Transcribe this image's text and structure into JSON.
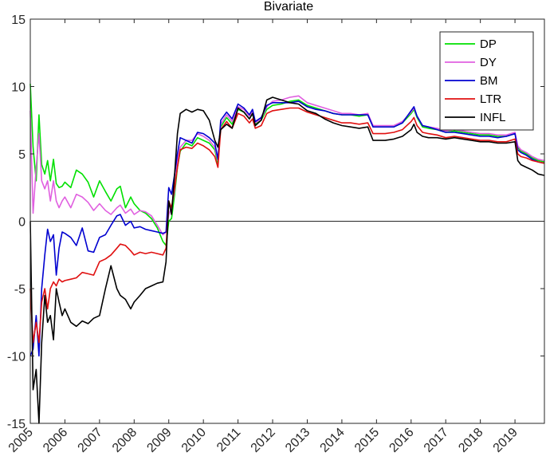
{
  "chart_data": {
    "type": "line",
    "title": "Bivariate",
    "xlabel": "",
    "ylabel": "",
    "xlim": [
      2005,
      2019.85
    ],
    "ylim": [
      -15,
      15
    ],
    "grid": false,
    "legend_position": "top-right",
    "x_ticks": [
      "2005",
      "2006",
      "2007",
      "2008",
      "2009",
      "2010",
      "2011",
      "2012",
      "2013",
      "2014",
      "2015",
      "2016",
      "2017",
      "2018",
      "2019"
    ],
    "y_ticks": [
      "-15",
      "-10",
      "-5",
      "0",
      "5",
      "10",
      "15"
    ],
    "zero_line": true,
    "series": [
      {
        "name": "DP",
        "color": "#00e000",
        "x": [
          2005.0,
          2005.08,
          2005.17,
          2005.25,
          2005.33,
          2005.42,
          2005.5,
          2005.58,
          2005.67,
          2005.75,
          2005.83,
          2005.92,
          2006.0,
          2006.17,
          2006.33,
          2006.5,
          2006.67,
          2006.83,
          2007.0,
          2007.17,
          2007.33,
          2007.5,
          2007.6,
          2007.75,
          2007.9,
          2008.0,
          2008.17,
          2008.33,
          2008.5,
          2008.67,
          2008.83,
          2008.92,
          2009.0,
          2009.08,
          2009.17,
          2009.25,
          2009.33,
          2009.5,
          2009.67,
          2009.83,
          2010.0,
          2010.17,
          2010.33,
          2010.42,
          2010.5,
          2010.67,
          2010.83,
          2011.0,
          2011.17,
          2011.33,
          2011.42,
          2011.5,
          2011.67,
          2011.83,
          2012.0,
          2012.25,
          2012.5,
          2012.75,
          2013.0,
          2013.25,
          2013.5,
          2013.75,
          2014.0,
          2014.25,
          2014.5,
          2014.75,
          2014.9,
          2015.0,
          2015.25,
          2015.5,
          2015.75,
          2016.0,
          2016.08,
          2016.17,
          2016.33,
          2016.5,
          2016.75,
          2017.0,
          2017.25,
          2017.5,
          2017.75,
          2018.0,
          2018.25,
          2018.5,
          2018.75,
          2019.0,
          2019.08,
          2019.17,
          2019.33,
          2019.5,
          2019.67,
          2019.85
        ],
        "y": [
          10.2,
          5.5,
          3.0,
          7.9,
          4.2,
          3.5,
          4.5,
          3.0,
          4.6,
          2.8,
          2.5,
          2.6,
          2.9,
          2.5,
          3.8,
          3.5,
          2.9,
          1.8,
          3.0,
          2.2,
          1.5,
          2.4,
          2.6,
          1.0,
          1.8,
          1.3,
          0.8,
          0.6,
          0.2,
          -0.5,
          -1.5,
          -1.8,
          0.0,
          0.2,
          2.0,
          4.0,
          5.2,
          5.8,
          5.6,
          6.2,
          6.0,
          5.8,
          5.3,
          4.3,
          7.0,
          7.7,
          7.2,
          8.3,
          8.1,
          7.6,
          8.0,
          7.2,
          7.5,
          8.3,
          8.6,
          8.7,
          8.9,
          9.0,
          8.6,
          8.4,
          8.2,
          8.0,
          7.9,
          7.9,
          7.8,
          7.9,
          7.0,
          7.0,
          7.0,
          7.0,
          7.3,
          8.0,
          8.3,
          7.7,
          7.0,
          6.9,
          6.8,
          6.6,
          6.7,
          6.6,
          6.5,
          6.4,
          6.4,
          6.3,
          6.3,
          6.5,
          5.5,
          5.2,
          5.0,
          4.7,
          4.5,
          4.4
        ]
      },
      {
        "name": "DY",
        "color": "#e060e0",
        "x": [
          2005.0,
          2005.08,
          2005.17,
          2005.25,
          2005.33,
          2005.42,
          2005.5,
          2005.58,
          2005.67,
          2005.75,
          2005.83,
          2005.92,
          2006.0,
          2006.17,
          2006.33,
          2006.5,
          2006.67,
          2006.83,
          2007.0,
          2007.17,
          2007.33,
          2007.5,
          2007.6,
          2007.75,
          2007.9,
          2008.0,
          2008.17,
          2008.33,
          2008.5,
          2008.67,
          2008.83,
          2008.92,
          2009.0,
          2009.08,
          2009.17,
          2009.25,
          2009.33,
          2009.5,
          2009.67,
          2009.83,
          2010.0,
          2010.17,
          2010.33,
          2010.42,
          2010.5,
          2010.67,
          2010.83,
          2011.0,
          2011.17,
          2011.33,
          2011.42,
          2011.5,
          2011.67,
          2011.83,
          2012.0,
          2012.25,
          2012.5,
          2012.75,
          2013.0,
          2013.25,
          2013.5,
          2013.75,
          2014.0,
          2014.25,
          2014.5,
          2014.75,
          2014.9,
          2015.0,
          2015.25,
          2015.5,
          2015.75,
          2016.0,
          2016.08,
          2016.17,
          2016.33,
          2016.5,
          2016.75,
          2017.0,
          2017.25,
          2017.5,
          2017.75,
          2018.0,
          2018.25,
          2018.5,
          2018.75,
          2019.0,
          2019.08,
          2019.17,
          2019.33,
          2019.5,
          2019.67,
          2019.85
        ],
        "y": [
          8.2,
          0.6,
          4.0,
          6.5,
          3.0,
          2.4,
          3.0,
          1.5,
          3.0,
          1.5,
          1.0,
          1.5,
          1.8,
          1.0,
          2.0,
          1.8,
          1.4,
          0.8,
          1.3,
          0.8,
          0.5,
          1.0,
          1.2,
          0.6,
          0.9,
          0.5,
          0.8,
          0.7,
          0.4,
          -0.3,
          -1.0,
          -0.8,
          0.5,
          1.0,
          2.3,
          4.5,
          5.5,
          6.0,
          6.0,
          6.5,
          6.3,
          6.0,
          5.5,
          4.5,
          7.2,
          7.9,
          7.4,
          8.5,
          8.3,
          7.8,
          8.2,
          7.3,
          7.6,
          8.5,
          8.9,
          9.0,
          9.2,
          9.3,
          8.8,
          8.6,
          8.4,
          8.2,
          8.0,
          8.0,
          7.9,
          8.0,
          7.1,
          7.1,
          7.1,
          7.1,
          7.4,
          8.1,
          8.4,
          7.8,
          7.1,
          7.0,
          6.9,
          6.7,
          6.8,
          6.7,
          6.6,
          6.5,
          6.5,
          6.4,
          6.4,
          6.6,
          5.6,
          5.3,
          5.1,
          4.8,
          4.6,
          4.5
        ]
      },
      {
        "name": "BM",
        "color": "#0000d0",
        "x": [
          2005.0,
          2005.08,
          2005.17,
          2005.25,
          2005.33,
          2005.42,
          2005.5,
          2005.58,
          2005.67,
          2005.75,
          2005.83,
          2005.92,
          2006.0,
          2006.17,
          2006.33,
          2006.5,
          2006.67,
          2006.83,
          2007.0,
          2007.17,
          2007.33,
          2007.5,
          2007.6,
          2007.75,
          2007.9,
          2008.0,
          2008.17,
          2008.33,
          2008.5,
          2008.67,
          2008.83,
          2008.92,
          2009.0,
          2009.08,
          2009.17,
          2009.25,
          2009.33,
          2009.5,
          2009.67,
          2009.83,
          2010.0,
          2010.17,
          2010.33,
          2010.42,
          2010.5,
          2010.67,
          2010.83,
          2011.0,
          2011.17,
          2011.33,
          2011.42,
          2011.5,
          2011.67,
          2011.83,
          2012.0,
          2012.25,
          2012.5,
          2012.75,
          2013.0,
          2013.25,
          2013.5,
          2013.75,
          2014.0,
          2014.25,
          2014.5,
          2014.75,
          2014.9,
          2015.0,
          2015.25,
          2015.5,
          2015.75,
          2016.0,
          2016.08,
          2016.17,
          2016.33,
          2016.5,
          2016.75,
          2017.0,
          2017.25,
          2017.5,
          2017.75,
          2018.0,
          2018.25,
          2018.5,
          2018.75,
          2019.0,
          2019.08,
          2019.17,
          2019.33,
          2019.5,
          2019.67,
          2019.85
        ],
        "y": [
          -10.0,
          -9.5,
          -7.0,
          -10.0,
          -5.0,
          -2.5,
          -0.6,
          -1.5,
          -1.0,
          -4.0,
          -2.0,
          -0.8,
          -0.9,
          -1.2,
          -1.8,
          -0.5,
          -2.2,
          -2.3,
          -1.2,
          -1.0,
          -0.3,
          0.4,
          0.5,
          -0.3,
          0.0,
          -0.5,
          -0.4,
          -0.6,
          -0.7,
          -0.8,
          -0.9,
          -0.8,
          2.5,
          2.0,
          3.5,
          5.0,
          6.2,
          6.0,
          5.8,
          6.6,
          6.5,
          6.2,
          5.8,
          4.6,
          7.5,
          8.1,
          7.6,
          8.7,
          8.4,
          7.9,
          8.3,
          7.4,
          7.7,
          8.6,
          8.8,
          8.8,
          8.8,
          8.9,
          8.5,
          8.3,
          8.2,
          8.0,
          7.9,
          7.9,
          7.9,
          7.9,
          7.0,
          7.0,
          7.0,
          7.0,
          7.3,
          8.2,
          8.5,
          7.8,
          7.1,
          7.0,
          6.8,
          6.6,
          6.6,
          6.5,
          6.4,
          6.3,
          6.3,
          6.2,
          6.3,
          6.5,
          5.3,
          5.1,
          4.9,
          4.6,
          4.4,
          4.3
        ]
      },
      {
        "name": "LTR",
        "color": "#e01010",
        "x": [
          2005.0,
          2005.08,
          2005.17,
          2005.25,
          2005.33,
          2005.42,
          2005.5,
          2005.58,
          2005.67,
          2005.75,
          2005.83,
          2005.92,
          2006.0,
          2006.17,
          2006.33,
          2006.5,
          2006.67,
          2006.83,
          2007.0,
          2007.17,
          2007.33,
          2007.5,
          2007.6,
          2007.75,
          2007.9,
          2008.0,
          2008.17,
          2008.33,
          2008.5,
          2008.67,
          2008.83,
          2008.92,
          2009.0,
          2009.08,
          2009.17,
          2009.25,
          2009.33,
          2009.5,
          2009.67,
          2009.83,
          2010.0,
          2010.17,
          2010.33,
          2010.42,
          2010.5,
          2010.67,
          2010.83,
          2011.0,
          2011.17,
          2011.33,
          2011.42,
          2011.5,
          2011.67,
          2011.83,
          2012.0,
          2012.25,
          2012.5,
          2012.75,
          2013.0,
          2013.25,
          2013.5,
          2013.75,
          2014.0,
          2014.25,
          2014.5,
          2014.75,
          2014.9,
          2015.0,
          2015.25,
          2015.5,
          2015.75,
          2016.0,
          2016.08,
          2016.17,
          2016.33,
          2016.5,
          2016.75,
          2017.0,
          2017.25,
          2017.5,
          2017.75,
          2018.0,
          2018.25,
          2018.5,
          2018.75,
          2019.0,
          2019.08,
          2019.17,
          2019.33,
          2019.5,
          2019.67,
          2019.85
        ],
        "y": [
          -5.0,
          -9.0,
          -7.5,
          -9.0,
          -6.0,
          -5.0,
          -6.5,
          -5.0,
          -4.5,
          -4.8,
          -4.3,
          -4.5,
          -4.4,
          -4.3,
          -4.2,
          -3.8,
          -3.9,
          -4.0,
          -3.0,
          -2.8,
          -2.5,
          -2.0,
          -1.7,
          -1.8,
          -2.2,
          -2.5,
          -2.3,
          -2.4,
          -2.3,
          -2.4,
          -2.5,
          -2.0,
          1.5,
          1.0,
          2.5,
          4.0,
          5.3,
          5.5,
          5.4,
          5.8,
          5.6,
          5.3,
          4.8,
          4.0,
          6.8,
          7.4,
          6.9,
          8.0,
          7.8,
          7.3,
          7.6,
          6.9,
          7.1,
          8.0,
          8.2,
          8.3,
          8.4,
          8.4,
          8.1,
          7.9,
          7.7,
          7.5,
          7.3,
          7.3,
          7.2,
          7.3,
          6.5,
          6.5,
          6.5,
          6.6,
          6.8,
          7.4,
          7.7,
          7.1,
          6.6,
          6.5,
          6.4,
          6.2,
          6.3,
          6.2,
          6.1,
          6.0,
          6.0,
          5.9,
          5.9,
          6.1,
          5.0,
          4.8,
          4.7,
          4.5,
          4.4,
          4.3
        ]
      },
      {
        "name": "INFL",
        "color": "#000000",
        "x": [
          2005.0,
          2005.08,
          2005.17,
          2005.25,
          2005.33,
          2005.42,
          2005.5,
          2005.58,
          2005.67,
          2005.75,
          2005.83,
          2005.92,
          2006.0,
          2006.17,
          2006.33,
          2006.5,
          2006.67,
          2006.83,
          2007.0,
          2007.17,
          2007.33,
          2007.5,
          2007.6,
          2007.75,
          2007.9,
          2008.0,
          2008.17,
          2008.33,
          2008.5,
          2008.67,
          2008.83,
          2008.92,
          2009.0,
          2009.08,
          2009.17,
          2009.25,
          2009.33,
          2009.5,
          2009.67,
          2009.83,
          2010.0,
          2010.17,
          2010.33,
          2010.42,
          2010.5,
          2010.67,
          2010.83,
          2011.0,
          2011.17,
          2011.33,
          2011.42,
          2011.5,
          2011.67,
          2011.83,
          2012.0,
          2012.25,
          2012.5,
          2012.75,
          2013.0,
          2013.25,
          2013.5,
          2013.75,
          2014.0,
          2014.25,
          2014.5,
          2014.75,
          2014.9,
          2015.0,
          2015.25,
          2015.5,
          2015.75,
          2016.0,
          2016.08,
          2016.17,
          2016.33,
          2016.5,
          2016.75,
          2017.0,
          2017.25,
          2017.5,
          2017.75,
          2018.0,
          2018.25,
          2018.5,
          2018.75,
          2019.0,
          2019.08,
          2019.17,
          2019.33,
          2019.5,
          2019.67,
          2019.85
        ],
        "y": [
          0.0,
          -12.5,
          -11.0,
          -15.0,
          -9.0,
          -5.5,
          -7.5,
          -7.0,
          -8.8,
          -5.0,
          -6.0,
          -7.0,
          -6.5,
          -7.5,
          -7.8,
          -7.4,
          -7.6,
          -7.2,
          -7.0,
          -5.0,
          -3.3,
          -5.0,
          -5.5,
          -5.8,
          -6.5,
          -6.0,
          -5.5,
          -5.0,
          -4.8,
          -4.6,
          -4.5,
          -3.0,
          1.5,
          0.5,
          3.5,
          6.5,
          8.0,
          8.3,
          8.1,
          8.3,
          8.2,
          7.5,
          6.0,
          5.5,
          6.8,
          7.2,
          6.9,
          8.4,
          8.1,
          7.6,
          8.0,
          7.1,
          7.5,
          9.0,
          9.2,
          9.0,
          8.8,
          8.7,
          8.2,
          8.0,
          7.6,
          7.3,
          7.1,
          7.0,
          6.9,
          7.0,
          6.0,
          6.0,
          6.0,
          6.1,
          6.3,
          6.8,
          7.2,
          6.6,
          6.3,
          6.2,
          6.2,
          6.1,
          6.2,
          6.1,
          6.0,
          5.9,
          5.9,
          5.8,
          5.8,
          5.9,
          4.5,
          4.2,
          4.0,
          3.8,
          3.5,
          3.4
        ]
      }
    ]
  }
}
